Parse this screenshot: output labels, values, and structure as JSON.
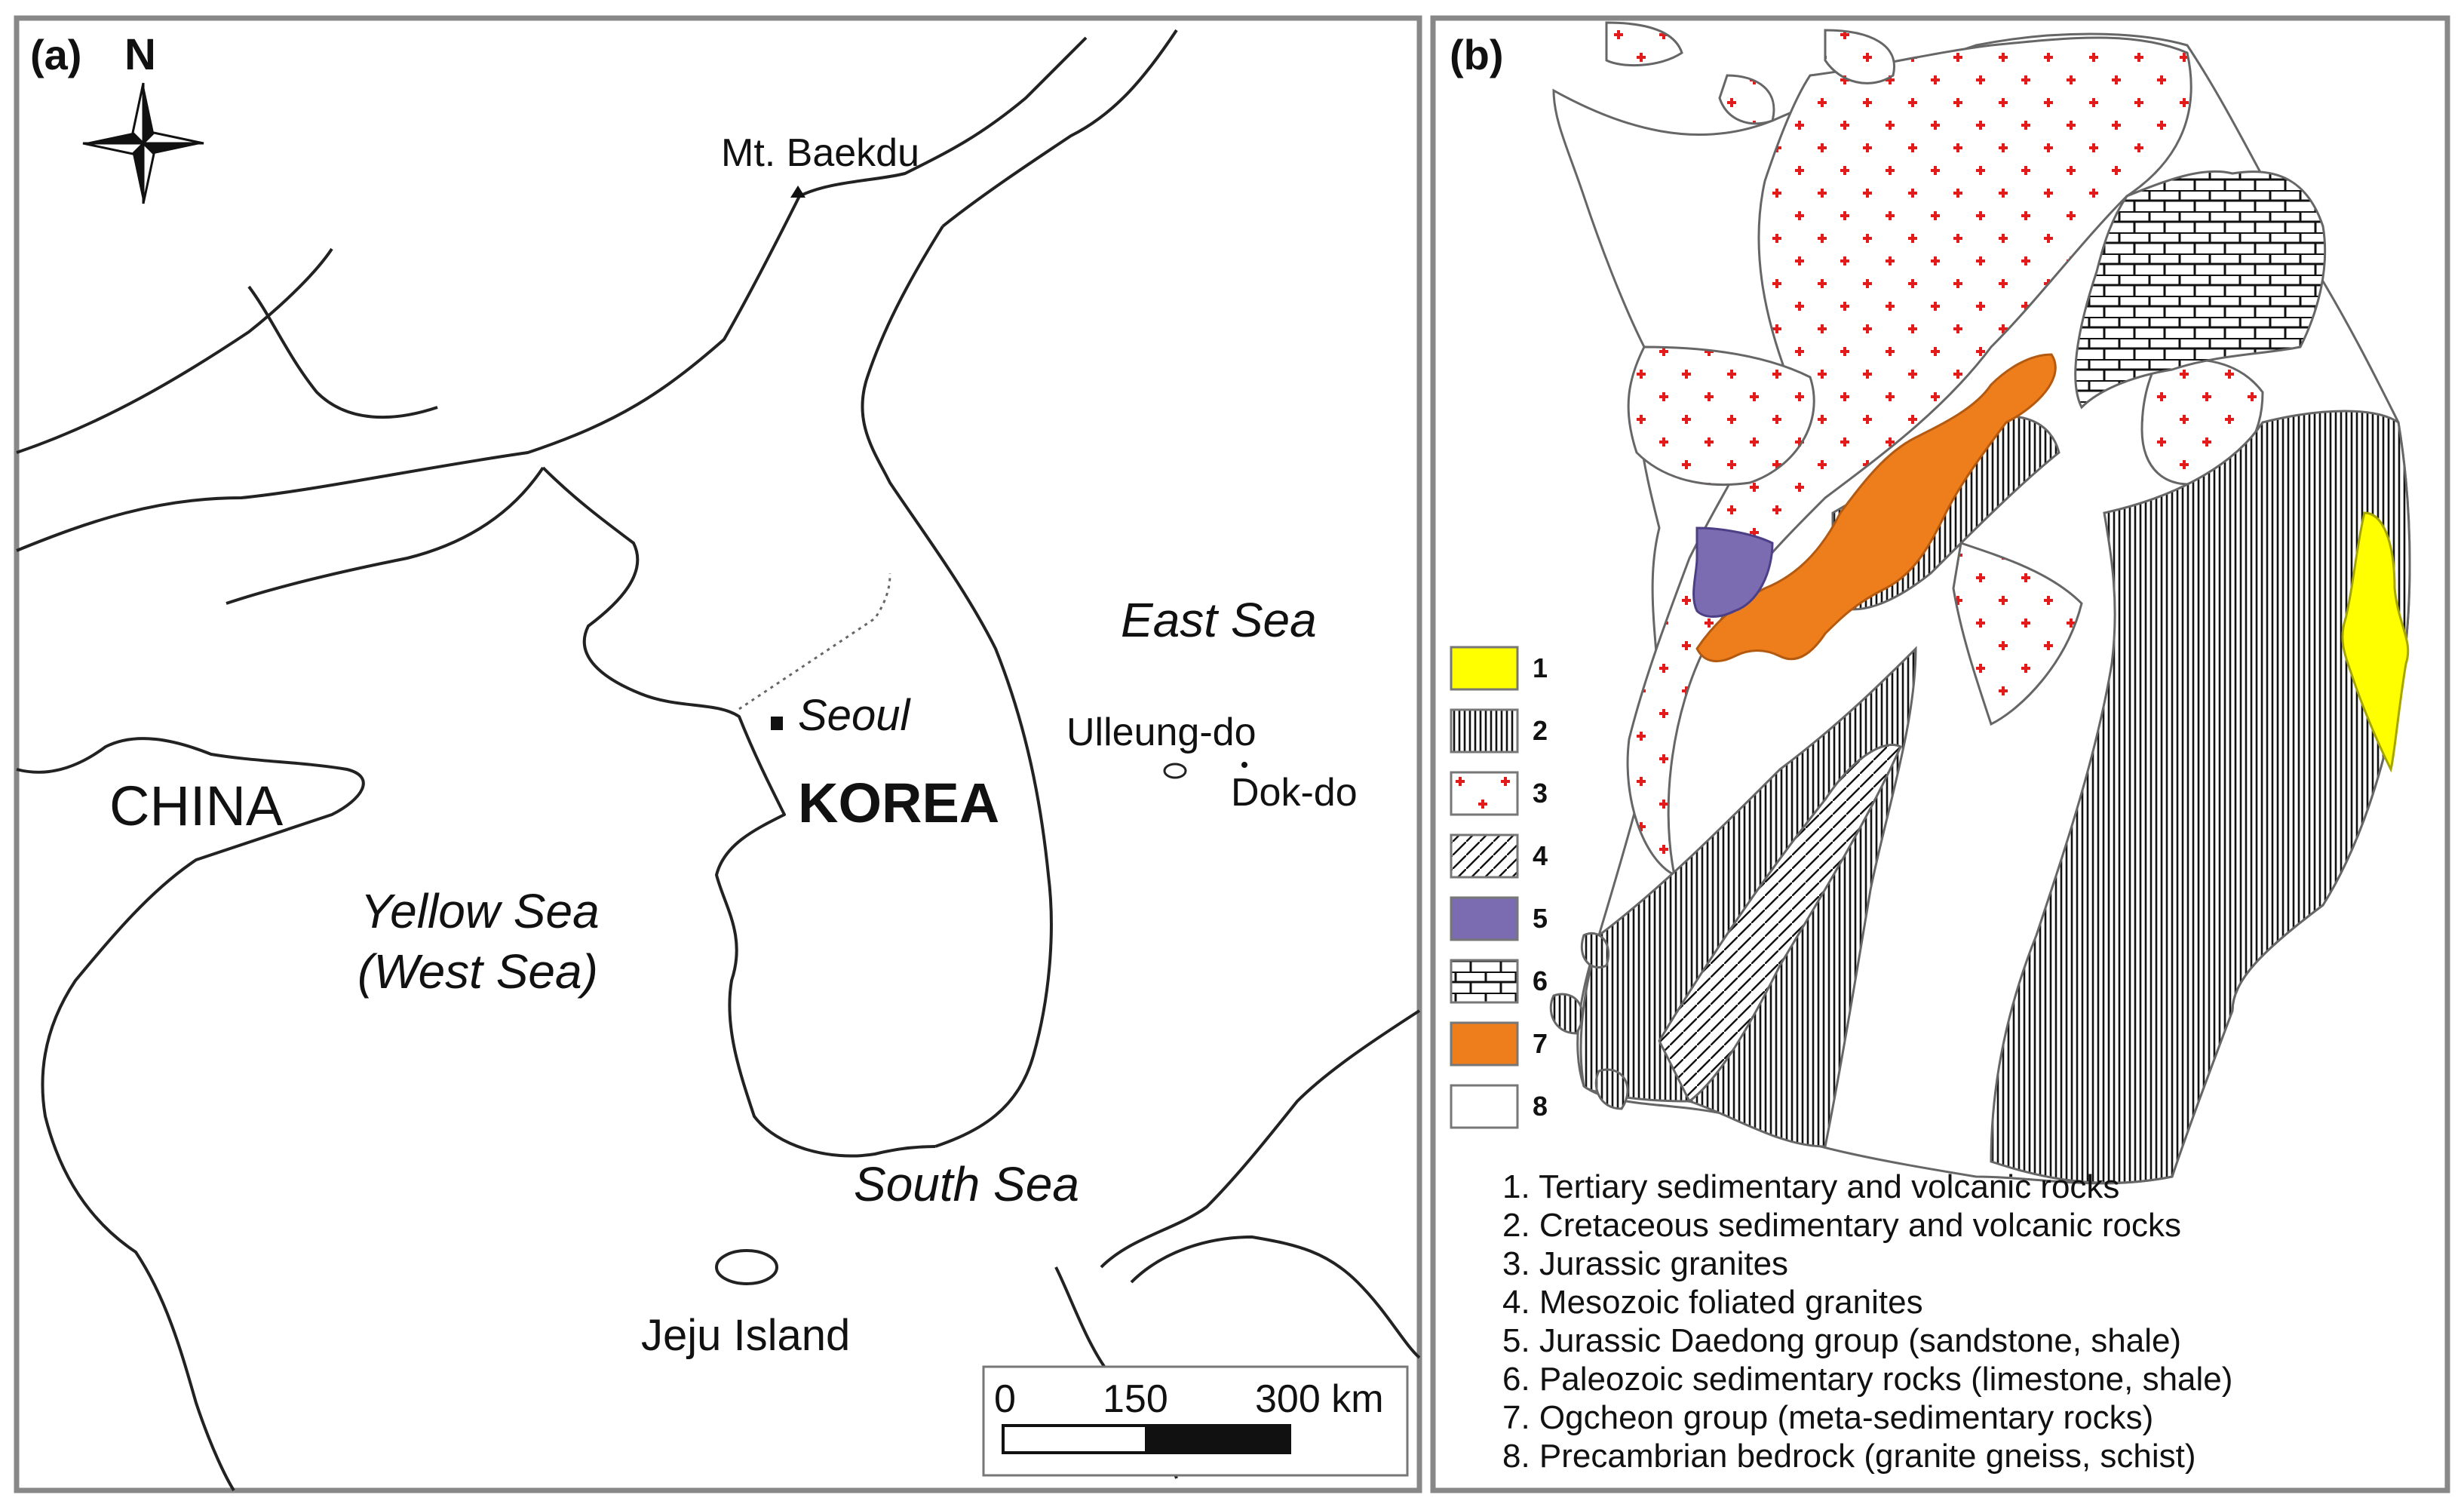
{
  "panel_a": {
    "label": "(a)",
    "north_label": "N",
    "places": {
      "mountain": "Mt. Baekdu",
      "capital": "Seoul",
      "country": "KOREA",
      "neighbor": "CHINA",
      "island_east": "Ulleung-do",
      "islet_east": "Dok-do",
      "island_south": "Jeju Island"
    },
    "seas": {
      "east": "East Sea",
      "yellow_1": "Yellow Sea",
      "yellow_2": "(West Sea)",
      "south": "South Sea"
    },
    "scale": {
      "t0": "0",
      "t1": "150",
      "t2": "300 km"
    }
  },
  "panel_b": {
    "label": "(b)",
    "legend": [
      {
        "num": "1",
        "text": "1. Tertiary sedimentary and volcanic rocks",
        "color": "#ffff00",
        "pattern": "solid"
      },
      {
        "num": "2",
        "text": "2. Cretaceous sedimentary and volcanic rocks",
        "color": "#ffffff",
        "pattern": "vertical-lines"
      },
      {
        "num": "3",
        "text": "3. Jurassic granites",
        "color": "#ffffff",
        "pattern": "red-crosses"
      },
      {
        "num": "4",
        "text": "4. Mesozoic foliated granites",
        "color": "#ffffff",
        "pattern": "diagonal-lines"
      },
      {
        "num": "5",
        "text": "5. Jurassic Daedong group (sandstone, shale)",
        "color": "#7b6bb0",
        "pattern": "solid"
      },
      {
        "num": "6",
        "text": "6. Paleozoic sedimentary rocks (limestone, shale)",
        "color": "#ffffff",
        "pattern": "brick"
      },
      {
        "num": "7",
        "text": "7. Ogcheon group (meta-sedimentary rocks)",
        "color": "#ee7d1c",
        "pattern": "solid"
      },
      {
        "num": "8",
        "text": "8. Precambrian bedrock (granite gneiss, schist)",
        "color": "#ffffff",
        "pattern": "blank"
      }
    ]
  },
  "colors": {
    "cross": "#e21b1b",
    "frame": "#888888",
    "line": "#222222"
  }
}
